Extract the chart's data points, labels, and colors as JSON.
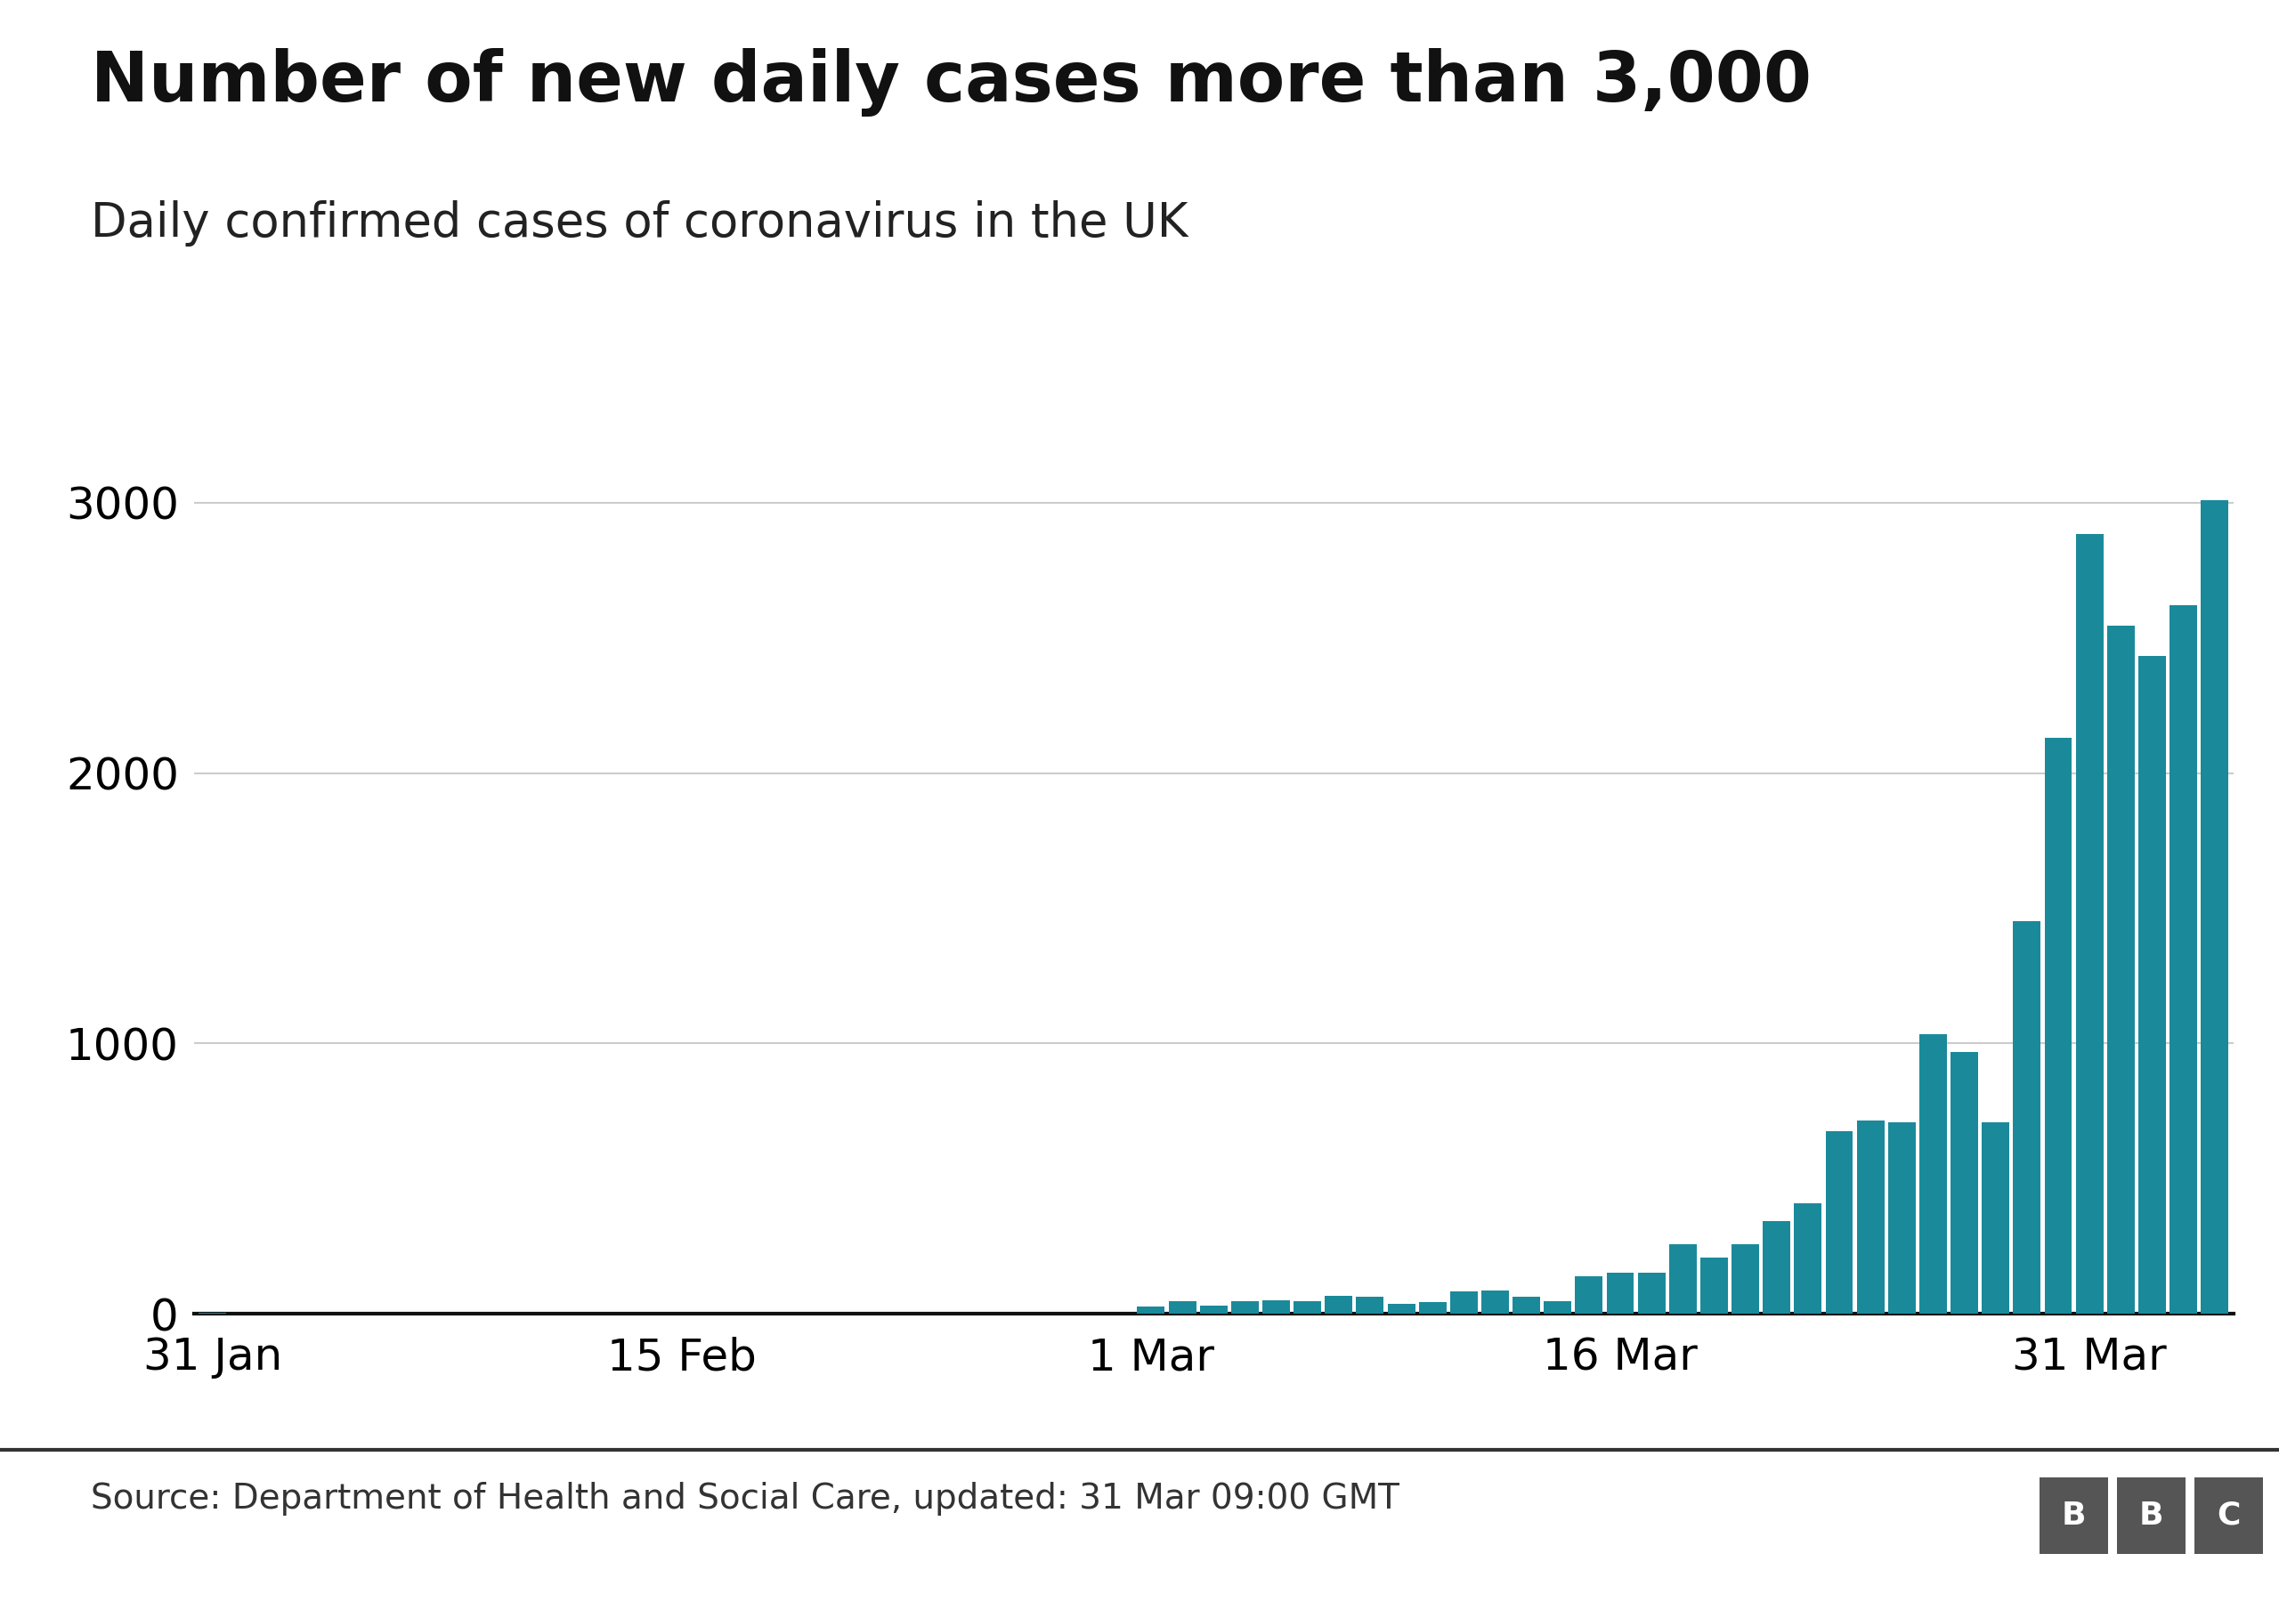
{
  "title": "Number of new daily cases more than 3,000",
  "subtitle": "Daily confirmed cases of coronavirus in the UK",
  "source_text": "Source: Department of Health and Social Care, updated: 31 Mar 09:00 GMT",
  "bar_color": "#1a8a9a",
  "background_color": "#ffffff",
  "title_fontsize": 56,
  "subtitle_fontsize": 38,
  "source_fontsize": 28,
  "tick_fontsize": 36,
  "ylim": [
    0,
    3200
  ],
  "yticks": [
    0,
    1000,
    2000,
    3000
  ],
  "ytick_labels": [
    "0",
    "1000",
    "2000",
    "3000"
  ],
  "xtick_labels": [
    "31 Jan",
    "15 Feb",
    "1 Mar",
    "16 Mar",
    "31 Mar"
  ],
  "values": [
    2,
    0,
    0,
    0,
    0,
    0,
    0,
    0,
    0,
    0,
    0,
    0,
    0,
    0,
    0,
    0,
    0,
    0,
    0,
    0,
    0,
    0,
    0,
    0,
    0,
    0,
    0,
    0,
    0,
    0,
    27,
    46,
    29,
    47,
    51,
    47,
    67,
    63,
    35,
    43,
    83,
    87,
    63,
    46,
    138,
    152,
    152,
    257,
    209,
    258,
    342,
    407,
    676,
    714,
    707,
    1035,
    967,
    708,
    1452,
    2129,
    2885,
    2546,
    2433,
    2619,
    3009
  ],
  "xtick_positions": [
    0,
    15,
    30,
    45,
    60
  ]
}
